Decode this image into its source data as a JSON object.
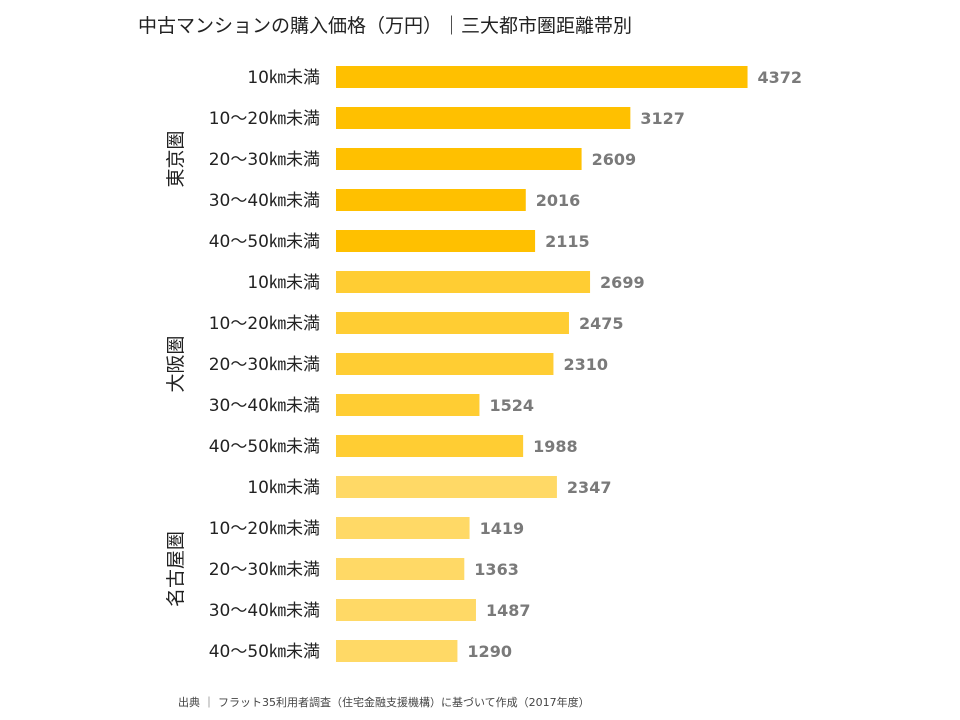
{
  "chart_data": {
    "type": "bar",
    "orientation": "horizontal",
    "title": "中古マンションの購入価格（万円）｜三大都市圏距離帯別",
    "source": "出典 ｜ フラット35利用者調査（住宅金融支援機構）に基づいて作成（2017年度）",
    "xlim": [
      0,
      4600
    ],
    "grid": false,
    "legend": "none",
    "groups": [
      {
        "name": "東京圏",
        "color": "#FFC000",
        "categories": [
          "10㎞未満",
          "10～20㎞未満",
          "20～30㎞未満",
          "30～40㎞未満",
          "40～50㎞未満"
        ],
        "values": [
          4372,
          3127,
          2609,
          2016,
          2115
        ]
      },
      {
        "name": "大阪圏",
        "color": "#FFCD33",
        "categories": [
          "10㎞未満",
          "10～20㎞未満",
          "20～30㎞未満",
          "30～40㎞未満",
          "40～50㎞未満"
        ],
        "values": [
          2699,
          2475,
          2310,
          1524,
          1988
        ]
      },
      {
        "name": "名古屋圏",
        "color": "#FFD966",
        "categories": [
          "10㎞未満",
          "10～20㎞未満",
          "20～30㎞未満",
          "30～40㎞未満",
          "40～50㎞未満"
        ],
        "values": [
          2347,
          1419,
          1363,
          1487,
          1290
        ]
      }
    ]
  }
}
